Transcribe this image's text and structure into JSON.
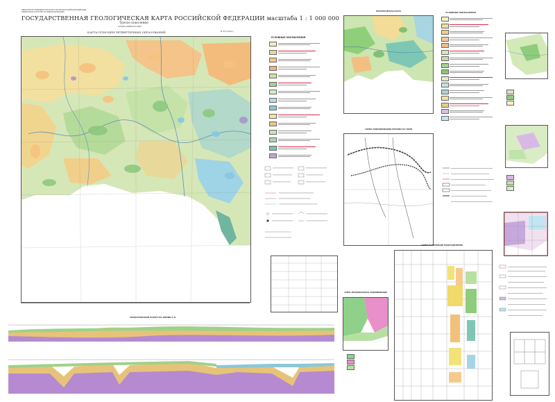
{
  "header": {
    "ministry_line1": "МИНИСТЕРСТВО ПРИРОДНЫХ РЕСУРСОВ И ЭКОЛОГИИ РОССИЙСКОЙ ФЕДЕРАЦИИ",
    "ministry_line2": "ФЕДЕРАЛЬНОЕ АГЕНТСТВО ПО НЕДРОПОЛЬЗОВАНИЮ",
    "title": "ГОСУДАРСТВЕННАЯ ГЕОЛОГИЧЕСКАЯ КАРТА РОССИЙСКОЙ ФЕДЕРАЦИИ масштаба 1 : 1 000 000",
    "generation": "Третье поколение",
    "series": "ЗАПАДНО-СИБИРСКАЯ СЕРИЯ",
    "map_title": "КАРТА ПЛИОЦЕН-ЧЕТВЕРТИЧНЫХ ОБРАЗОВАНИЙ",
    "sheet": "N-43 (Омск)"
  },
  "legend": {
    "title": "УСЛОВНЫЕ ОБОЗНАЧЕНИЯ",
    "colors": [
      "#f2ecb8",
      "#e9d89a",
      "#f6c68a",
      "#f4b277",
      "#c8e3ae",
      "#a6d28c",
      "#d9e8c2",
      "#b7dbe6",
      "#8cc7d9",
      "#f1e6a2",
      "#e8c880",
      "#cfe3a8",
      "#a9d6b8",
      "#7fc2a4",
      "#c1a6d4"
    ]
  },
  "right_legend": {
    "title": "УСЛОВНЫЕ ОБОЗНАЧЕНИЯ",
    "colors": [
      "#f7f0c2",
      "#f0df9c",
      "#e8d08a",
      "#f3c89a",
      "#f5b98a",
      "#d5e8b8",
      "#bfe0a1",
      "#a4d38c",
      "#8bc67c",
      "#e1ecc8",
      "#c7e2dc",
      "#a8d4cf",
      "#f0e2a6",
      "#e5cf86",
      "#d6c1e2",
      "#c3e6f0"
    ]
  },
  "insets": {
    "top_center": "ГЕОЛОГИЧЕСКАЯ КАРТА",
    "scheme_lines": "СХЕМА РАЙОНИРОВАНИЯ ПРОГИБА НА ТОМИ",
    "zoning": "СХЕМА ТЕКТОНИЧЕСКОГО РАЙОНИРОВАНИЯ",
    "strat_table": "СХЕМА КОРРЕЛЯЦИИ ПОДРАЗДЕЛЕНИЙ",
    "section_title": "ГЕОЛОГИЧЕСКИЙ РАЗРЕЗ ПО ЛИНИИ А–Б"
  },
  "map_colors": {
    "base": "#d9e9bd",
    "yellow": "#f2e3a0",
    "orange": "#f4b878",
    "green": "#9fcf88",
    "teal": "#78c4b3",
    "blue": "#9fd3e6",
    "purple": "#a78bc7"
  }
}
